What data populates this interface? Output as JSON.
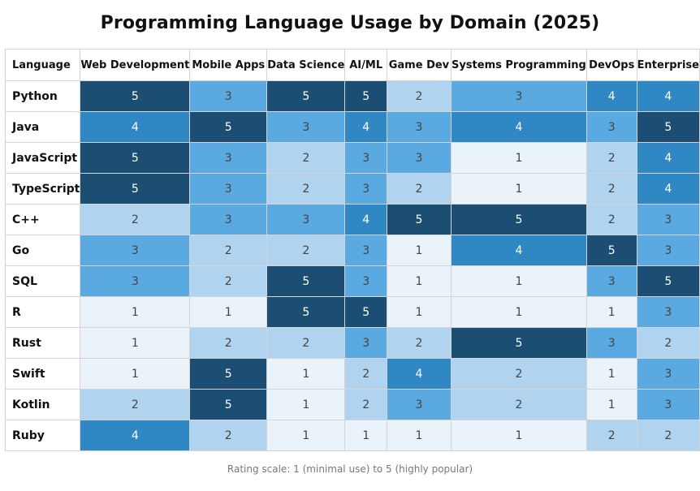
{
  "chart_data": {
    "type": "heatmap",
    "title": "Programming Language Usage by Domain (2025)",
    "row_header": "Language",
    "columns": [
      "Web Development",
      "Mobile Apps",
      "Data Science",
      "AI/ML",
      "Game Dev",
      "Systems Programming",
      "DevOps",
      "Enterprise"
    ],
    "rows": [
      {
        "label": "Python",
        "values": [
          5,
          3,
          5,
          5,
          2,
          3,
          4,
          4
        ]
      },
      {
        "label": "Java",
        "values": [
          4,
          5,
          3,
          4,
          3,
          4,
          3,
          5
        ]
      },
      {
        "label": "JavaScript",
        "values": [
          5,
          3,
          2,
          3,
          3,
          1,
          2,
          4
        ]
      },
      {
        "label": "TypeScript",
        "values": [
          5,
          3,
          2,
          3,
          2,
          1,
          2,
          4
        ]
      },
      {
        "label": "C++",
        "values": [
          2,
          3,
          3,
          4,
          5,
          5,
          2,
          3
        ]
      },
      {
        "label": "Go",
        "values": [
          3,
          2,
          2,
          3,
          1,
          4,
          5,
          3
        ]
      },
      {
        "label": "SQL",
        "values": [
          3,
          2,
          5,
          3,
          1,
          1,
          3,
          5
        ]
      },
      {
        "label": "R",
        "values": [
          1,
          1,
          5,
          5,
          1,
          1,
          1,
          3
        ]
      },
      {
        "label": "Rust",
        "values": [
          1,
          2,
          2,
          3,
          2,
          5,
          3,
          2
        ]
      },
      {
        "label": "Swift",
        "values": [
          1,
          5,
          1,
          2,
          4,
          2,
          1,
          3
        ]
      },
      {
        "label": "Kotlin",
        "values": [
          2,
          5,
          1,
          2,
          3,
          2,
          1,
          3
        ]
      },
      {
        "label": "Ruby",
        "values": [
          4,
          2,
          1,
          1,
          1,
          1,
          2,
          2
        ]
      }
    ],
    "scale_min": 1,
    "scale_max": 5,
    "color_scale": {
      "1": "#eaf2fa",
      "2": "#b0d4ef",
      "3": "#5aa9e0",
      "4": "#2f87c4",
      "5": "#1c4e73"
    },
    "text_colors": {
      "light_text": "#ffffff",
      "dark_text": "#444444"
    },
    "footnote": "Rating scale: 1 (minimal use) to 5 (highly popular)"
  }
}
